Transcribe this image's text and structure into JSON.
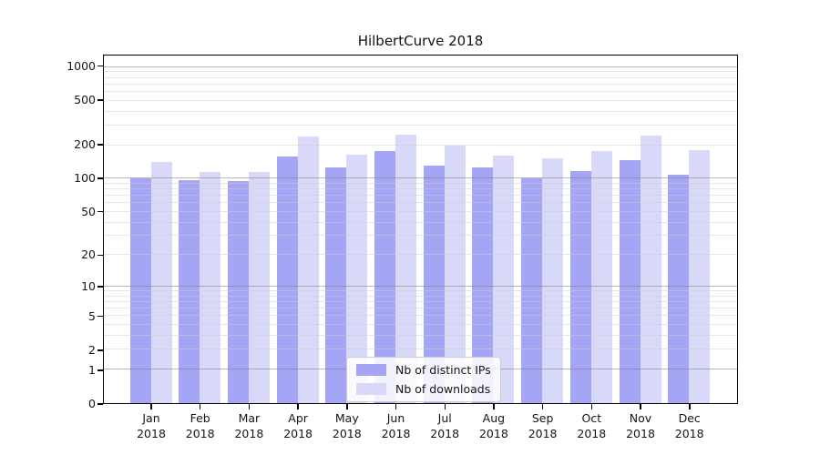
{
  "title": "HilbertCurve 2018",
  "colors": {
    "distinct_ips": "#a5a5f5",
    "downloads": "#d8d8f8",
    "major_grid": "rgba(125,125,125,0.55)",
    "minor_grid": "rgba(205,205,205,0.5)",
    "spine": "#000000",
    "text": "#151515",
    "background": "#ffffff",
    "legend_border": "#cccccc"
  },
  "legend": {
    "position": "lower center",
    "items": [
      {
        "label": "Nb of distinct IPs",
        "color": "#a5a5f5"
      },
      {
        "label": "Nb of downloads",
        "color": "#d8d8f8"
      }
    ]
  },
  "chart_data": {
    "type": "bar",
    "title": "HilbertCurve 2018",
    "categories": [
      "Jan 2018",
      "Feb 2018",
      "Mar 2018",
      "Apr 2018",
      "May 2018",
      "Jun 2018",
      "Jul 2018",
      "Aug 2018",
      "Sep 2018",
      "Oct 2018",
      "Nov 2018",
      "Dec 2018"
    ],
    "series": [
      {
        "name": "Nb of distinct IPs",
        "color": "#a5a5f5",
        "values": [
          100,
          96,
          95,
          158,
          125,
          178,
          130,
          125,
          101,
          118,
          148,
          108
        ]
      },
      {
        "name": "Nb of downloads",
        "color": "#d8d8f8",
        "values": [
          141,
          115,
          115,
          238,
          165,
          250,
          197,
          161,
          152,
          178,
          242,
          180
        ]
      }
    ],
    "xlabel": "",
    "ylabel": "",
    "yscale": "symlog",
    "yticks": [
      0,
      1,
      2,
      5,
      10,
      20,
      50,
      100,
      200,
      500,
      1000
    ],
    "ylim": [
      0,
      1243
    ],
    "grid": {
      "major": [
        1,
        10,
        100,
        1000
      ],
      "minor_decades": [
        1,
        10,
        100
      ],
      "minor_mults": [
        2,
        3,
        4,
        5,
        6,
        7,
        8,
        9
      ]
    },
    "legend_position": "lower center"
  }
}
